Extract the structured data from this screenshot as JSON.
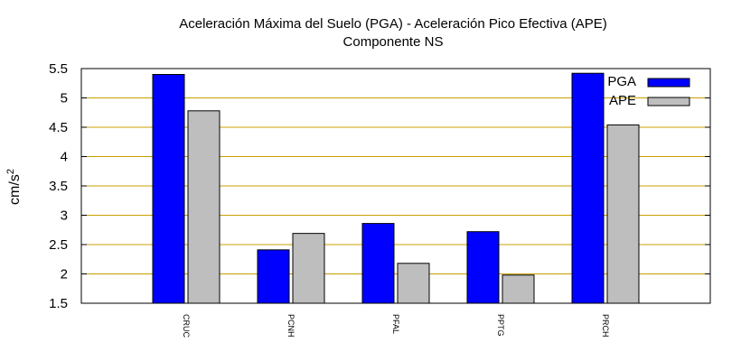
{
  "chart_data": {
    "type": "bar",
    "title": "Aceleración Máxima del Suelo (PGA) -  Aceleración Pico Efectiva (APE)",
    "subtitle": "Componente NS",
    "ylabel_base": "cm/s",
    "ylabel_exp": "2",
    "xlabel": "",
    "categories": [
      "CRUC",
      "PCNH",
      "PFAL",
      "PPTG",
      "PRCH"
    ],
    "series": [
      {
        "name": "PGA",
        "color": "#0000ff",
        "values": [
          5.4,
          2.41,
          2.86,
          2.72,
          5.42
        ]
      },
      {
        "name": "APE",
        "color": "#bebebe",
        "values": [
          4.78,
          2.69,
          2.18,
          1.98,
          4.54
        ]
      }
    ],
    "ylim": [
      1.5,
      5.5
    ],
    "yticks": [
      "1.5",
      "2",
      "2.5",
      "3",
      "3.5",
      "4",
      "4.5",
      "5",
      "5.5"
    ],
    "grid": true,
    "grid_color": "#c8a000",
    "legend_position": "top-right"
  }
}
